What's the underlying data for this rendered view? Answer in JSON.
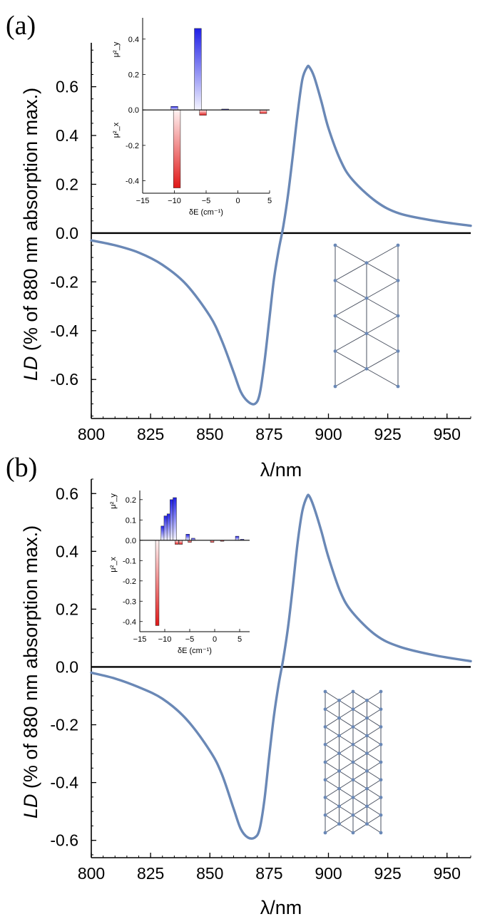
{
  "chart_data": [
    {
      "type": "line",
      "panel_label": "(a)",
      "xlabel": "λ/nm",
      "ylabel_italic": "LD",
      "ylabel_rest": " (% of 880 nm absorption max.)",
      "xlim": [
        800,
        960
      ],
      "ylim": [
        -0.76,
        0.78
      ],
      "xticks": [
        800,
        825,
        850,
        875,
        900,
        925,
        950
      ],
      "xtick_labels": [
        "800",
        "825",
        "850",
        "875",
        "900",
        "925",
        "950"
      ],
      "yticks": [
        -0.6,
        -0.4,
        -0.2,
        0.0,
        0.2,
        0.4,
        0.6
      ],
      "ytick_labels": [
        "-0.6",
        "-0.4",
        "-0.2",
        "0.0",
        "0.2",
        "0.4",
        "0.6"
      ],
      "series": [
        {
          "name": "LD",
          "color": "#6a88b6",
          "x": [
            800,
            810,
            820,
            830,
            840,
            850,
            855,
            860,
            863,
            866,
            869,
            871,
            873,
            875,
            877,
            879,
            881,
            883,
            885,
            887,
            889,
            891,
            892,
            894,
            897,
            900,
            905,
            910,
            920,
            930,
            945,
            960
          ],
          "y": [
            -0.03,
            -0.05,
            -0.08,
            -0.13,
            -0.21,
            -0.34,
            -0.44,
            -0.57,
            -0.65,
            -0.69,
            -0.7,
            -0.66,
            -0.53,
            -0.36,
            -0.19,
            -0.07,
            0.03,
            0.16,
            0.32,
            0.49,
            0.63,
            0.68,
            0.68,
            0.64,
            0.54,
            0.43,
            0.3,
            0.22,
            0.13,
            0.08,
            0.05,
            0.03
          ]
        }
      ],
      "inset": {
        "xlabel": "δE (cm⁻¹)",
        "ylabel_top": "μ²_y",
        "ylabel_bottom": "μ²_x",
        "xlim": [
          -15,
          5
        ],
        "ylim": [
          -0.47,
          0.52
        ],
        "xticks": [
          -15,
          -10,
          -5,
          0,
          5
        ],
        "xtick_labels": [
          "−15",
          "−10",
          "−5",
          "0",
          "5"
        ],
        "yticks": [
          -0.4,
          -0.2,
          0.0,
          0.2,
          0.4
        ],
        "ytick_labels": [
          "-0.4",
          "-0.2",
          "0.0",
          "0.2",
          "0.4"
        ],
        "bar_width": 1.1,
        "bars_y": {
          "x": [
            -10,
            -6.3,
            -2
          ],
          "values": [
            0.02,
            0.46,
            0.005
          ]
        },
        "bars_x": {
          "x": [
            -9.6,
            -5.5,
            4
          ],
          "values": [
            -0.44,
            -0.03,
            -0.02
          ]
        }
      },
      "lattice": {
        "columns": 3,
        "rows": 9
      }
    },
    {
      "type": "line",
      "panel_label": "(b)",
      "xlabel": "λ/nm",
      "ylabel_italic": "LD",
      "ylabel_rest": " (% of 880 nm absorption max.)",
      "xlim": [
        800,
        960
      ],
      "ylim": [
        -0.66,
        0.65
      ],
      "xticks": [
        800,
        825,
        850,
        875,
        900,
        925,
        950
      ],
      "xtick_labels": [
        "800",
        "825",
        "850",
        "875",
        "900",
        "925",
        "950"
      ],
      "yticks": [
        -0.6,
        -0.4,
        -0.2,
        0.0,
        0.2,
        0.4,
        0.6
      ],
      "ytick_labels": [
        "-0.6",
        "-0.4",
        "-0.2",
        "0.0",
        "0.2",
        "0.4",
        "0.6"
      ],
      "series": [
        {
          "name": "LD",
          "color": "#6a88b6",
          "x": [
            800,
            810,
            820,
            830,
            840,
            850,
            855,
            860,
            863,
            866,
            869,
            871,
            873,
            875,
            877,
            879,
            881,
            883,
            885,
            887,
            889,
            891,
            892,
            894,
            897,
            900,
            905,
            910,
            920,
            930,
            945,
            960
          ],
          "y": [
            -0.02,
            -0.04,
            -0.07,
            -0.11,
            -0.18,
            -0.29,
            -0.37,
            -0.49,
            -0.56,
            -0.59,
            -0.59,
            -0.56,
            -0.46,
            -0.31,
            -0.17,
            -0.06,
            0.03,
            0.14,
            0.28,
            0.43,
            0.54,
            0.59,
            0.59,
            0.55,
            0.47,
            0.38,
            0.26,
            0.19,
            0.11,
            0.07,
            0.04,
            0.02
          ]
        }
      ],
      "inset": {
        "xlabel": "δE (cm⁻¹)",
        "ylabel_top": "μ²_y",
        "ylabel_bottom": "μ²_x",
        "xlim": [
          -15,
          7
        ],
        "ylim": [
          -0.45,
          0.245
        ],
        "xticks": [
          -15,
          -10,
          -5,
          0,
          5
        ],
        "xtick_labels": [
          "−15",
          "−10",
          "−5",
          "0",
          "5"
        ],
        "yticks": [
          -0.4,
          -0.3,
          -0.2,
          -0.1,
          0.0,
          0.1,
          0.2
        ],
        "ytick_labels": [
          "-0.4",
          "-0.3",
          "-0.2",
          "-0.1",
          "0.0",
          "0.1",
          "0.2"
        ],
        "bar_width": 0.7,
        "bars_y": {
          "x": [
            -10.4,
            -9.8,
            -9.2,
            -8.6,
            -8.0,
            -5.4,
            -4.3,
            4.5,
            5.5
          ],
          "values": [
            0.07,
            0.12,
            0.13,
            0.2,
            0.21,
            0.03,
            0.01,
            0.02,
            0.005
          ]
        },
        "bars_x": {
          "x": [
            -11.5,
            -7.6,
            -6.8,
            -5.0,
            -0.5,
            1.5
          ],
          "values": [
            -0.42,
            -0.02,
            -0.02,
            -0.01,
            -0.01,
            -0.005
          ]
        }
      },
      "lattice": {
        "columns": 5,
        "rows": 17
      }
    }
  ]
}
